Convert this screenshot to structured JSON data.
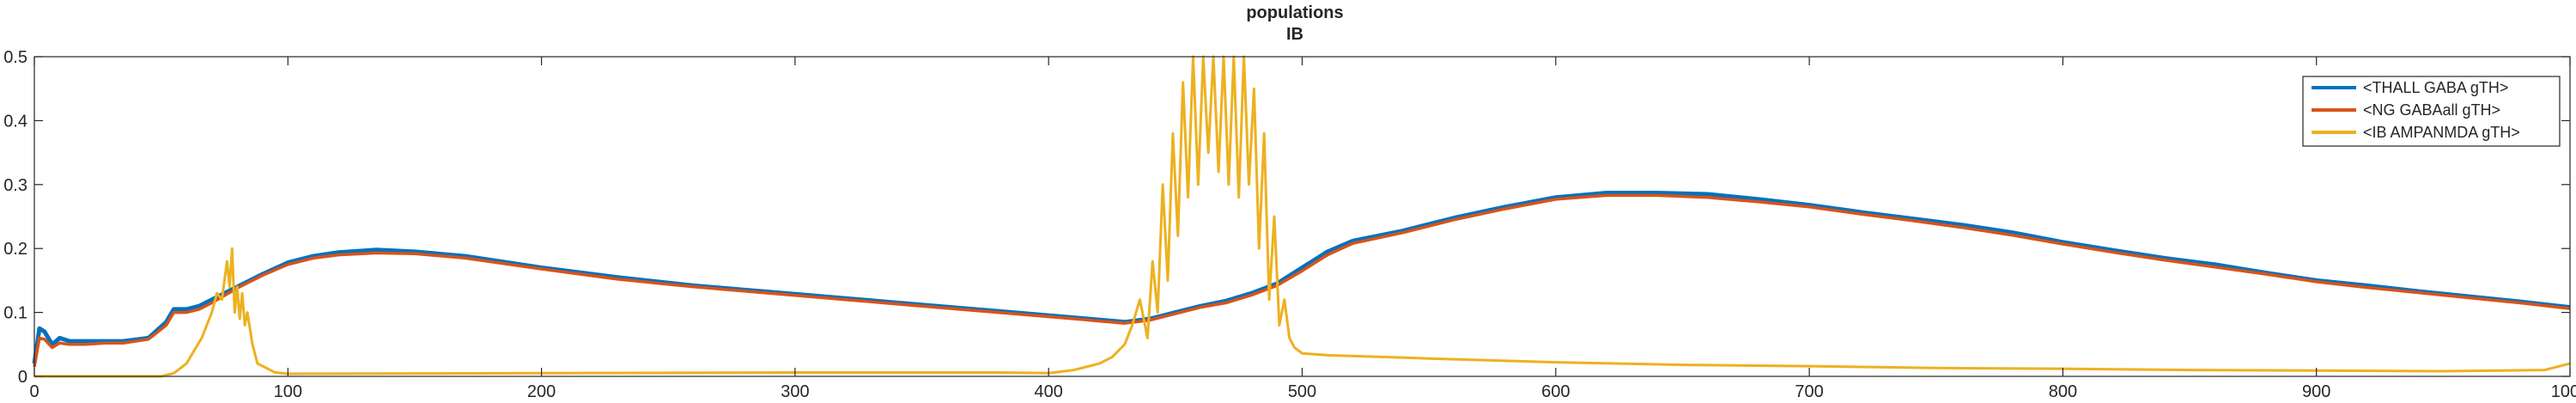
{
  "chart_data": {
    "type": "line",
    "title": "populations",
    "subtitle": "IB",
    "xlabel": "",
    "ylabel": "",
    "xlim": [
      0,
      1000
    ],
    "ylim": [
      0,
      0.5
    ],
    "xticks": [
      0,
      100,
      200,
      300,
      400,
      500,
      600,
      700,
      800,
      900,
      1000
    ],
    "yticks": [
      0,
      0.1,
      0.2,
      0.3,
      0.4,
      0.5
    ],
    "ytick_labels": [
      "0",
      "0.1",
      "0.2",
      "0.3",
      "0.4",
      "0.5"
    ],
    "grid": false,
    "legend_position": "top-right",
    "series": [
      {
        "name": "<THALL GABA gTH>",
        "color": "#0072BD",
        "x": [
          0,
          2,
          4,
          7,
          10,
          14,
          20,
          28,
          35,
          45,
          52,
          55,
          60,
          65,
          70,
          80,
          90,
          100,
          110,
          120,
          135,
          150,
          170,
          200,
          230,
          260,
          290,
          320,
          350,
          380,
          410,
          430,
          440,
          450,
          460,
          470,
          480,
          490,
          500,
          510,
          520,
          540,
          560,
          580,
          600,
          620,
          640,
          660,
          680,
          700,
          720,
          740,
          760,
          780,
          800,
          820,
          840,
          860,
          880,
          900,
          920,
          940,
          960,
          980,
          1000
        ],
        "y": [
          0.02,
          0.075,
          0.07,
          0.05,
          0.06,
          0.055,
          0.055,
          0.055,
          0.055,
          0.06,
          0.085,
          0.105,
          0.105,
          0.11,
          0.12,
          0.14,
          0.16,
          0.178,
          0.188,
          0.194,
          0.198,
          0.195,
          0.188,
          0.17,
          0.155,
          0.142,
          0.132,
          0.122,
          0.112,
          0.102,
          0.092,
          0.085,
          0.09,
          0.1,
          0.11,
          0.118,
          0.13,
          0.145,
          0.17,
          0.195,
          0.212,
          0.228,
          0.248,
          0.265,
          0.28,
          0.287,
          0.287,
          0.285,
          0.277,
          0.268,
          0.257,
          0.247,
          0.237,
          0.225,
          0.21,
          0.197,
          0.185,
          0.175,
          0.162,
          0.15,
          0.142,
          0.133,
          0.125,
          0.117,
          0.108
        ]
      },
      {
        "name": "<NG GABAall gTH>",
        "color": "#D95319",
        "x": [
          0,
          2,
          4,
          7,
          10,
          14,
          20,
          28,
          35,
          45,
          52,
          55,
          60,
          65,
          70,
          80,
          90,
          100,
          110,
          120,
          135,
          150,
          170,
          200,
          230,
          260,
          290,
          320,
          350,
          380,
          410,
          430,
          440,
          450,
          460,
          470,
          480,
          490,
          500,
          510,
          520,
          540,
          560,
          580,
          600,
          620,
          640,
          660,
          680,
          700,
          720,
          740,
          760,
          780,
          800,
          820,
          840,
          860,
          880,
          900,
          920,
          940,
          960,
          980,
          1000
        ],
        "y": [
          0.015,
          0.06,
          0.058,
          0.045,
          0.052,
          0.05,
          0.05,
          0.052,
          0.052,
          0.058,
          0.08,
          0.1,
          0.1,
          0.105,
          0.115,
          0.138,
          0.158,
          0.175,
          0.185,
          0.19,
          0.193,
          0.192,
          0.185,
          0.168,
          0.152,
          0.14,
          0.13,
          0.12,
          0.11,
          0.1,
          0.09,
          0.083,
          0.088,
          0.098,
          0.108,
          0.115,
          0.127,
          0.142,
          0.165,
          0.19,
          0.208,
          0.225,
          0.245,
          0.262,
          0.277,
          0.283,
          0.283,
          0.28,
          0.273,
          0.265,
          0.254,
          0.244,
          0.233,
          0.221,
          0.207,
          0.194,
          0.182,
          0.171,
          0.16,
          0.148,
          0.139,
          0.131,
          0.123,
          0.115,
          0.106
        ]
      },
      {
        "name": "<IB AMPANMDA gTH>",
        "color": "#EDB120",
        "x": [
          0,
          50,
          55,
          60,
          63,
          66,
          68,
          70,
          72,
          74,
          76,
          77,
          78,
          79,
          80,
          81,
          82,
          83,
          84,
          86,
          88,
          95,
          100,
          200,
          300,
          380,
          400,
          410,
          420,
          425,
          430,
          433,
          436,
          439,
          441,
          443,
          445,
          447,
          449,
          451,
          453,
          455,
          457,
          459,
          461,
          463,
          465,
          467,
          469,
          471,
          473,
          475,
          477,
          479,
          481,
          483,
          485,
          487,
          489,
          491,
          493,
          495,
          497,
          500,
          510,
          550,
          600,
          650,
          700,
          750,
          800,
          850,
          900,
          950,
          990,
          1000
        ],
        "y": [
          0,
          0,
          0.005,
          0.02,
          0.04,
          0.06,
          0.08,
          0.1,
          0.13,
          0.12,
          0.18,
          0.14,
          0.2,
          0.1,
          0.14,
          0.09,
          0.13,
          0.08,
          0.1,
          0.05,
          0.02,
          0.006,
          0.004,
          0.005,
          0.006,
          0.006,
          0.005,
          0.01,
          0.02,
          0.03,
          0.05,
          0.08,
          0.12,
          0.06,
          0.18,
          0.1,
          0.3,
          0.15,
          0.38,
          0.22,
          0.46,
          0.28,
          0.5,
          0.3,
          0.5,
          0.35,
          0.5,
          0.32,
          0.5,
          0.3,
          0.5,
          0.28,
          0.5,
          0.3,
          0.45,
          0.2,
          0.38,
          0.12,
          0.25,
          0.08,
          0.12,
          0.06,
          0.045,
          0.036,
          0.033,
          0.028,
          0.022,
          0.018,
          0.016,
          0.013,
          0.012,
          0.01,
          0.009,
          0.008,
          0.01,
          0.02
        ]
      }
    ]
  }
}
